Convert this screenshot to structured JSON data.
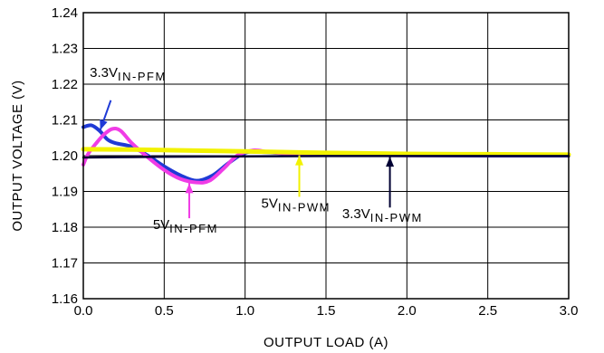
{
  "chart_data": {
    "type": "line",
    "title": "",
    "xlabel": "OUTPUT LOAD (A)",
    "ylabel": "OUTPUT VOLTAGE (V)",
    "xlim": [
      0.0,
      3.0
    ],
    "ylim": [
      1.16,
      1.24
    ],
    "x_ticks": [
      "0.0",
      "0.5",
      "1.0",
      "1.5",
      "2.0",
      "2.5",
      "3.0"
    ],
    "y_ticks": [
      "1.16",
      "1.17",
      "1.18",
      "1.19",
      "1.20",
      "1.21",
      "1.22",
      "1.23",
      "1.24"
    ],
    "grid": true,
    "series": [
      {
        "color": "#1f3ad6",
        "points": [
          [
            0.0,
            1.208
          ],
          [
            0.05,
            1.2085
          ],
          [
            0.1,
            1.207
          ],
          [
            0.15,
            1.2045
          ],
          [
            0.2,
            1.2035
          ],
          [
            0.3,
            1.2025
          ],
          [
            0.4,
            1.2
          ],
          [
            0.5,
            1.197
          ],
          [
            0.6,
            1.1945
          ],
          [
            0.7,
            1.193
          ],
          [
            0.8,
            1.1945
          ],
          [
            0.9,
            1.198
          ],
          [
            1.0,
            1.2008
          ],
          [
            1.1,
            1.201
          ],
          [
            1.3,
            1.2005
          ],
          [
            1.6,
            1.2002
          ],
          [
            2.0,
            1.2001
          ],
          [
            2.5,
            1.2
          ],
          [
            3.0,
            1.2
          ]
        ]
      },
      {
        "color": "#f03ce6",
        "points": [
          [
            0.0,
            1.1975
          ],
          [
            0.03,
            1.2005
          ],
          [
            0.08,
            1.2035
          ],
          [
            0.13,
            1.206
          ],
          [
            0.18,
            1.2075
          ],
          [
            0.23,
            1.207
          ],
          [
            0.3,
            1.2035
          ],
          [
            0.4,
            1.1995
          ],
          [
            0.5,
            1.196
          ],
          [
            0.6,
            1.1935
          ],
          [
            0.7,
            1.1925
          ],
          [
            0.78,
            1.193
          ],
          [
            0.87,
            1.1965
          ],
          [
            0.95,
            1.2
          ],
          [
            1.05,
            1.2015
          ],
          [
            1.15,
            1.201
          ],
          [
            1.3,
            1.2005
          ],
          [
            1.6,
            1.2002
          ],
          [
            2.0,
            1.2001
          ],
          [
            3.0,
            1.2001
          ]
        ]
      },
      {
        "color": "#f2f200",
        "points": [
          [
            0.0,
            1.2018
          ],
          [
            0.3,
            1.2017
          ],
          [
            0.6,
            1.2015
          ],
          [
            1.0,
            1.2012
          ],
          [
            1.5,
            1.2008
          ],
          [
            2.0,
            1.2005
          ],
          [
            2.5,
            1.2004
          ],
          [
            3.0,
            1.2003
          ]
        ]
      },
      {
        "color": "#000033",
        "points": [
          [
            0.0,
            1.1995
          ],
          [
            0.5,
            1.1997
          ],
          [
            1.0,
            1.1998
          ],
          [
            1.5,
            1.1999
          ],
          [
            2.0,
            1.1999
          ],
          [
            2.5,
            1.1999
          ],
          [
            3.0,
            1.1999
          ]
        ]
      }
    ],
    "annotations": [
      {
        "main": "3.3V",
        "sub": "IN-PFM",
        "color": "#1f3ad6",
        "text_at": [
          0.04,
          1.222
        ],
        "arrow_from": [
          0.17,
          1.2155
        ],
        "arrow_to": [
          0.105,
          1.2072
        ]
      },
      {
        "main": "5V",
        "sub": "IN-PFM",
        "color": "#f03ce6",
        "text_at": [
          0.43,
          1.1795
        ],
        "arrow_from": [
          0.655,
          1.1825
        ],
        "arrow_to": [
          0.655,
          1.1923
        ]
      },
      {
        "main": "5V",
        "sub": "IN-PWM",
        "color": "#f2f200",
        "text_at": [
          1.1,
          1.1855
        ],
        "arrow_from": [
          1.335,
          1.1885
        ],
        "arrow_to": [
          1.335,
          1.2001
        ]
      },
      {
        "main": "3.3V",
        "sub": "IN-PWM",
        "color": "#000033",
        "text_at": [
          1.6,
          1.1825
        ],
        "arrow_from": [
          1.895,
          1.1855
        ],
        "arrow_to": [
          1.895,
          1.1997
        ]
      }
    ]
  }
}
